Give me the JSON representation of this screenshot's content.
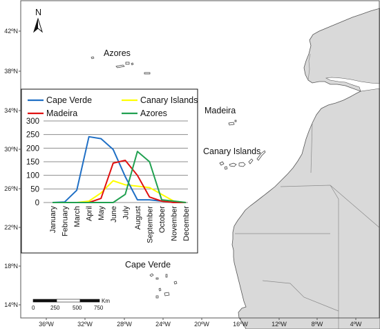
{
  "map": {
    "north_label": "N",
    "lat_labels": [
      "42ºN",
      "38ºN",
      "34ºN",
      "30ºN",
      "26ºN",
      "22ºN",
      "18ºN",
      "14ºN"
    ],
    "lon_labels": [
      "36ºW",
      "32ºW",
      "28ºW",
      "24ºW",
      "20ºW",
      "16ºW",
      "12ºW",
      "8ºW",
      "4ºW"
    ],
    "places": {
      "azores": "Azores",
      "madeira": "Madeira",
      "canary": "Canary Islands",
      "cape_verde": "Cape Verde"
    },
    "scale": {
      "ticks": [
        "0",
        "250",
        "500",
        "750"
      ],
      "unit": "Km"
    },
    "colors": {
      "land": "#d9d9d9",
      "coast": "#555555",
      "border": "#8a8a8a"
    }
  },
  "chart_data": {
    "type": "line",
    "categories": [
      "January",
      "February",
      "March",
      "April",
      "May",
      "June",
      "July",
      "August",
      "September",
      "October",
      "November",
      "December"
    ],
    "ylim": [
      0,
      300
    ],
    "yticks": [
      0,
      50,
      100,
      150,
      200,
      250,
      300
    ],
    "grid": true,
    "legend_position": "top",
    "series": [
      {
        "name": "Cape Verde",
        "color": "#1f6fc5",
        "values": [
          0,
          2,
          45,
          242,
          235,
          195,
          95,
          10,
          10,
          5,
          0,
          0
        ]
      },
      {
        "name": "Canary Islands",
        "color": "#ffff00",
        "values": [
          0,
          0,
          0,
          5,
          35,
          80,
          65,
          60,
          55,
          30,
          5,
          0
        ]
      },
      {
        "name": "Madeira",
        "color": "#e01010",
        "values": [
          0,
          0,
          0,
          0,
          15,
          145,
          155,
          100,
          20,
          5,
          0,
          0
        ]
      },
      {
        "name": "Azores",
        "color": "#20a050",
        "values": [
          0,
          0,
          0,
          0,
          0,
          0,
          30,
          188,
          150,
          10,
          5,
          0
        ]
      }
    ]
  }
}
